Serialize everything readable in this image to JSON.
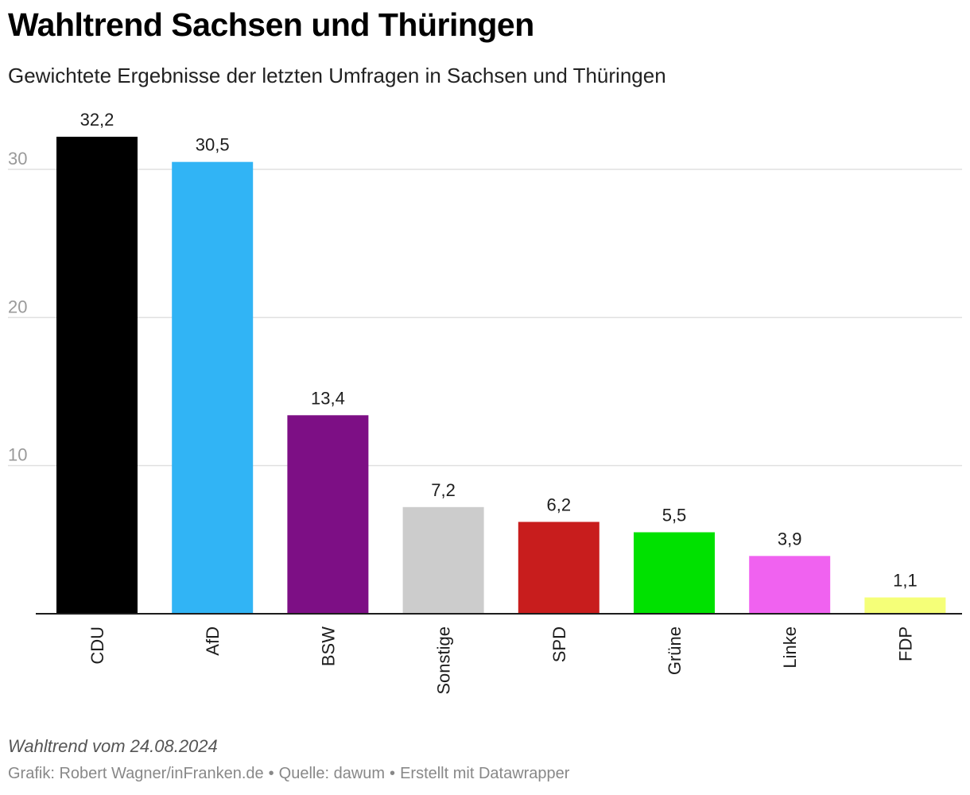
{
  "header": {
    "title": "Wahltrend Sachsen und Thüringen",
    "subtitle": "Gewichtete Ergebnisse der letzten Umfragen in Sachsen und Thüringen"
  },
  "footer": {
    "note": "Wahltrend vom 24.08.2024",
    "credit_graphic": "Grafik: Robert Wagner/inFranken.de",
    "separator": "•",
    "credit_source": "Quelle: dawum",
    "credit_tool": "Erstellt mit Datawrapper"
  },
  "chart_data": {
    "type": "bar",
    "title": "Wahltrend Sachsen und Thüringen",
    "subtitle": "Gewichtete Ergebnisse der letzten Umfragen in Sachsen und Thüringen",
    "xlabel": "",
    "ylabel": "",
    "categories": [
      "CDU",
      "AfD",
      "BSW",
      "Sonstige",
      "SPD",
      "Grüne",
      "Linke",
      "FDP"
    ],
    "values": [
      32.2,
      30.5,
      13.4,
      7.2,
      6.2,
      5.5,
      3.9,
      1.1
    ],
    "value_labels": [
      "32,2",
      "30,5",
      "13,4",
      "7,2",
      "6,2",
      "5,5",
      "3,9",
      "1,1"
    ],
    "colors": [
      "#000000",
      "#31b4f5",
      "#7d0f85",
      "#cccccc",
      "#c81d1d",
      "#00e100",
      "#f062f0",
      "#f5ff78"
    ],
    "yticks": [
      10,
      20,
      30
    ],
    "ylim": [
      0,
      32.2
    ],
    "grid": true,
    "legend": "none"
  }
}
